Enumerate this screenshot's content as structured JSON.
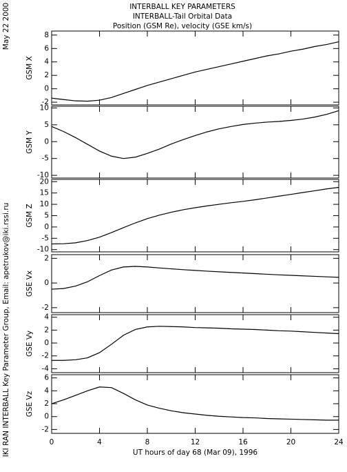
{
  "header": {
    "lines": [
      "INTERBALL KEY PARAMETERS",
      "INTERBALL-Tail Orbital Data",
      "Position (GSM Re), velocity (GSE km/s)"
    ]
  },
  "date": "May 22 2000",
  "credit": "IKI RAN INTERBALL Key Parameter Group, Email: apetrukov@iki.rssi.ru",
  "chart_data": [
    {
      "type": "line",
      "y_label": "GSM X",
      "x": [
        0,
        1,
        2,
        3,
        4,
        5,
        6,
        7,
        8,
        9,
        10,
        11,
        12,
        13,
        14,
        15,
        16,
        17,
        18,
        19,
        20,
        21,
        22,
        23,
        24
      ],
      "xlim": [
        0,
        24
      ],
      "ylim": [
        -2.4,
        8.6
      ],
      "yticks": [
        -2,
        0,
        2,
        4,
        6,
        8
      ],
      "series": [
        {
          "name": "GSM X",
          "color": "#000000",
          "values": [
            -1.4,
            -1.6,
            -1.8,
            -1.85,
            -1.7,
            -1.3,
            -0.7,
            -0.1,
            0.5,
            1.0,
            1.5,
            2.0,
            2.5,
            2.9,
            3.3,
            3.7,
            4.1,
            4.5,
            4.9,
            5.2,
            5.6,
            5.9,
            6.3,
            6.6,
            7.0
          ]
        }
      ]
    },
    {
      "type": "line",
      "y_label": "GSM Y",
      "x": [
        0,
        1,
        2,
        3,
        4,
        5,
        6,
        7,
        8,
        9,
        10,
        11,
        12,
        13,
        14,
        15,
        16,
        17,
        18,
        19,
        20,
        21,
        22,
        23,
        24
      ],
      "xlim": [
        0,
        24
      ],
      "ylim": [
        -10.8,
        10.5
      ],
      "yticks": [
        -10,
        -5,
        0,
        5,
        10
      ],
      "series": [
        {
          "name": "GSM Y",
          "color": "#000000",
          "values": [
            4.5,
            3,
            1.2,
            -0.8,
            -2.8,
            -4.3,
            -5,
            -4.6,
            -3.5,
            -2.2,
            -0.7,
            0.6,
            1.8,
            2.9,
            3.8,
            4.5,
            5.1,
            5.5,
            5.8,
            6.0,
            6.3,
            6.7,
            7.3,
            8.1,
            9.2
          ]
        }
      ]
    },
    {
      "type": "line",
      "y_label": "GSM Z",
      "x": [
        0,
        1,
        2,
        3,
        4,
        5,
        6,
        7,
        8,
        9,
        10,
        11,
        12,
        13,
        14,
        15,
        16,
        17,
        18,
        19,
        20,
        21,
        22,
        23,
        24
      ],
      "xlim": [
        0,
        24
      ],
      "ylim": [
        -11,
        21
      ],
      "yticks": [
        -10,
        -5,
        0,
        5,
        10,
        15,
        20
      ],
      "series": [
        {
          "name": "GSM Z",
          "color": "#000000",
          "values": [
            -7.5,
            -7.4,
            -7,
            -6,
            -4.5,
            -2.5,
            -0.3,
            1.8,
            3.7,
            5.2,
            6.5,
            7.6,
            8.5,
            9.3,
            10,
            10.7,
            11.3,
            12,
            12.8,
            13.6,
            14.4,
            15.2,
            16,
            16.8,
            17.5
          ]
        }
      ]
    },
    {
      "type": "line",
      "y_label": "GSE Vx",
      "x": [
        0,
        1,
        2,
        3,
        4,
        5,
        6,
        7,
        8,
        9,
        10,
        11,
        12,
        13,
        14,
        15,
        16,
        17,
        18,
        19,
        20,
        21,
        22,
        23,
        24
      ],
      "xlim": [
        0,
        24
      ],
      "ylim": [
        -2.4,
        2.3
      ],
      "yticks": [
        -2,
        0,
        2
      ],
      "series": [
        {
          "name": "GSE Vx",
          "color": "#000000",
          "values": [
            -0.5,
            -0.45,
            -0.25,
            0.1,
            0.6,
            1.05,
            1.3,
            1.35,
            1.3,
            1.22,
            1.15,
            1.08,
            1.02,
            0.96,
            0.91,
            0.86,
            0.81,
            0.76,
            0.71,
            0.66,
            0.62,
            0.58,
            0.54,
            0.5,
            0.46
          ]
        }
      ]
    },
    {
      "type": "line",
      "y_label": "GSE Vy",
      "x": [
        0,
        1,
        2,
        3,
        4,
        5,
        6,
        7,
        8,
        9,
        10,
        11,
        12,
        13,
        14,
        15,
        16,
        17,
        18,
        19,
        20,
        21,
        22,
        23,
        24
      ],
      "xlim": [
        0,
        24
      ],
      "ylim": [
        -4.6,
        4.4
      ],
      "yticks": [
        -4,
        -2,
        0,
        2,
        4
      ],
      "series": [
        {
          "name": "GSE Vy",
          "color": "#000000",
          "values": [
            -2.7,
            -2.7,
            -2.6,
            -2.3,
            -1.5,
            -0.2,
            1.2,
            2.1,
            2.5,
            2.6,
            2.55,
            2.5,
            2.4,
            2.35,
            2.3,
            2.2,
            2.15,
            2.1,
            2.0,
            1.9,
            1.85,
            1.75,
            1.65,
            1.55,
            1.45
          ]
        }
      ]
    },
    {
      "type": "line",
      "y_label": "GSE Vz",
      "x": [
        0,
        1,
        2,
        3,
        4,
        5,
        6,
        7,
        8,
        9,
        10,
        11,
        12,
        13,
        14,
        15,
        16,
        17,
        18,
        19,
        20,
        21,
        22,
        23,
        24
      ],
      "xlim": [
        0,
        24
      ],
      "ylim": [
        -2.6,
        6.5
      ],
      "yticks": [
        -2,
        0,
        2,
        4,
        6
      ],
      "xticks": [
        0,
        4,
        8,
        12,
        16,
        20,
        24
      ],
      "x_label": "UT hours of day  68 (Mar 09), 1996",
      "series": [
        {
          "name": "GSE Vz",
          "color": "#000000",
          "values": [
            2.0,
            2.6,
            3.3,
            4.0,
            4.6,
            4.5,
            3.6,
            2.6,
            1.8,
            1.3,
            0.9,
            0.6,
            0.4,
            0.2,
            0.05,
            -0.05,
            -0.15,
            -0.2,
            -0.3,
            -0.35,
            -0.4,
            -0.45,
            -0.5,
            -0.55,
            -0.55
          ]
        }
      ]
    }
  ]
}
